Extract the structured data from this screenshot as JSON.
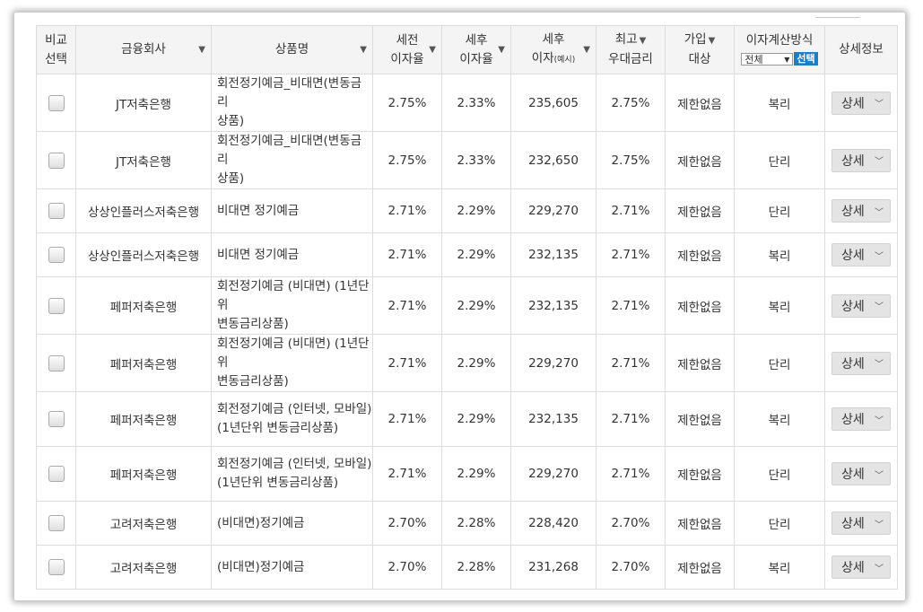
{
  "headers": {
    "compare": [
      "비교",
      "선택"
    ],
    "company": "금융회사",
    "product": "상품명",
    "pretax": [
      "세전",
      "이자율"
    ],
    "aftertax": [
      "세후",
      "이자율"
    ],
    "interest": [
      "세후",
      "이자",
      "(예시)"
    ],
    "max": [
      "최고",
      "우대금리"
    ],
    "join": [
      "가입",
      "대상"
    ],
    "calc": "이자계산방식",
    "calc_select": "전체",
    "calc_button": "선택",
    "detail": "상세정보",
    "sort_icon": "▼"
  },
  "detail_label": "상세",
  "rows": [
    {
      "company": "JT저축은행",
      "product": [
        "회전정기예금_비대면(변동금리",
        "상품)"
      ],
      "pretax": "2.75%",
      "aftertax": "2.33%",
      "interest": "235,605",
      "max": "2.75%",
      "join": "제한없음",
      "calc": "복리"
    },
    {
      "company": "JT저축은행",
      "product": [
        "회전정기예금_비대면(변동금리",
        "상품)"
      ],
      "pretax": "2.75%",
      "aftertax": "2.33%",
      "interest": "232,650",
      "max": "2.75%",
      "join": "제한없음",
      "calc": "단리"
    },
    {
      "company": "상상인플러스저축은행",
      "product": [
        "비대면 정기예금"
      ],
      "pretax": "2.71%",
      "aftertax": "2.29%",
      "interest": "229,270",
      "max": "2.71%",
      "join": "제한없음",
      "calc": "단리"
    },
    {
      "company": "상상인플러스저축은행",
      "product": [
        "비대면 정기예금"
      ],
      "pretax": "2.71%",
      "aftertax": "2.29%",
      "interest": "232,135",
      "max": "2.71%",
      "join": "제한없음",
      "calc": "복리"
    },
    {
      "company": "페퍼저축은행",
      "product": [
        "회전정기예금 (비대면) (1년단위",
        "변동금리상품)"
      ],
      "pretax": "2.71%",
      "aftertax": "2.29%",
      "interest": "232,135",
      "max": "2.71%",
      "join": "제한없음",
      "calc": "복리"
    },
    {
      "company": "페퍼저축은행",
      "product": [
        "회전정기예금 (비대면) (1년단위",
        "변동금리상품)"
      ],
      "pretax": "2.71%",
      "aftertax": "2.29%",
      "interest": "229,270",
      "max": "2.71%",
      "join": "제한없음",
      "calc": "단리"
    },
    {
      "company": "페퍼저축은행",
      "product": [
        "회전정기예금 (인터넷, 모바일)",
        "(1년단위 변동금리상품)"
      ],
      "pretax": "2.71%",
      "aftertax": "2.29%",
      "interest": "232,135",
      "max": "2.71%",
      "join": "제한없음",
      "calc": "복리"
    },
    {
      "company": "페퍼저축은행",
      "product": [
        "회전정기예금 (인터넷, 모바일)",
        "(1년단위 변동금리상품)"
      ],
      "pretax": "2.71%",
      "aftertax": "2.29%",
      "interest": "229,270",
      "max": "2.71%",
      "join": "제한없음",
      "calc": "단리"
    },
    {
      "company": "고려저축은행",
      "product": [
        "(비대면)정기예금"
      ],
      "pretax": "2.70%",
      "aftertax": "2.28%",
      "interest": "228,420",
      "max": "2.70%",
      "join": "제한없음",
      "calc": "단리"
    },
    {
      "company": "고려저축은행",
      "product": [
        "(비대면)정기예금"
      ],
      "pretax": "2.70%",
      "aftertax": "2.28%",
      "interest": "231,268",
      "max": "2.70%",
      "join": "제한없음",
      "calc": "복리"
    }
  ]
}
